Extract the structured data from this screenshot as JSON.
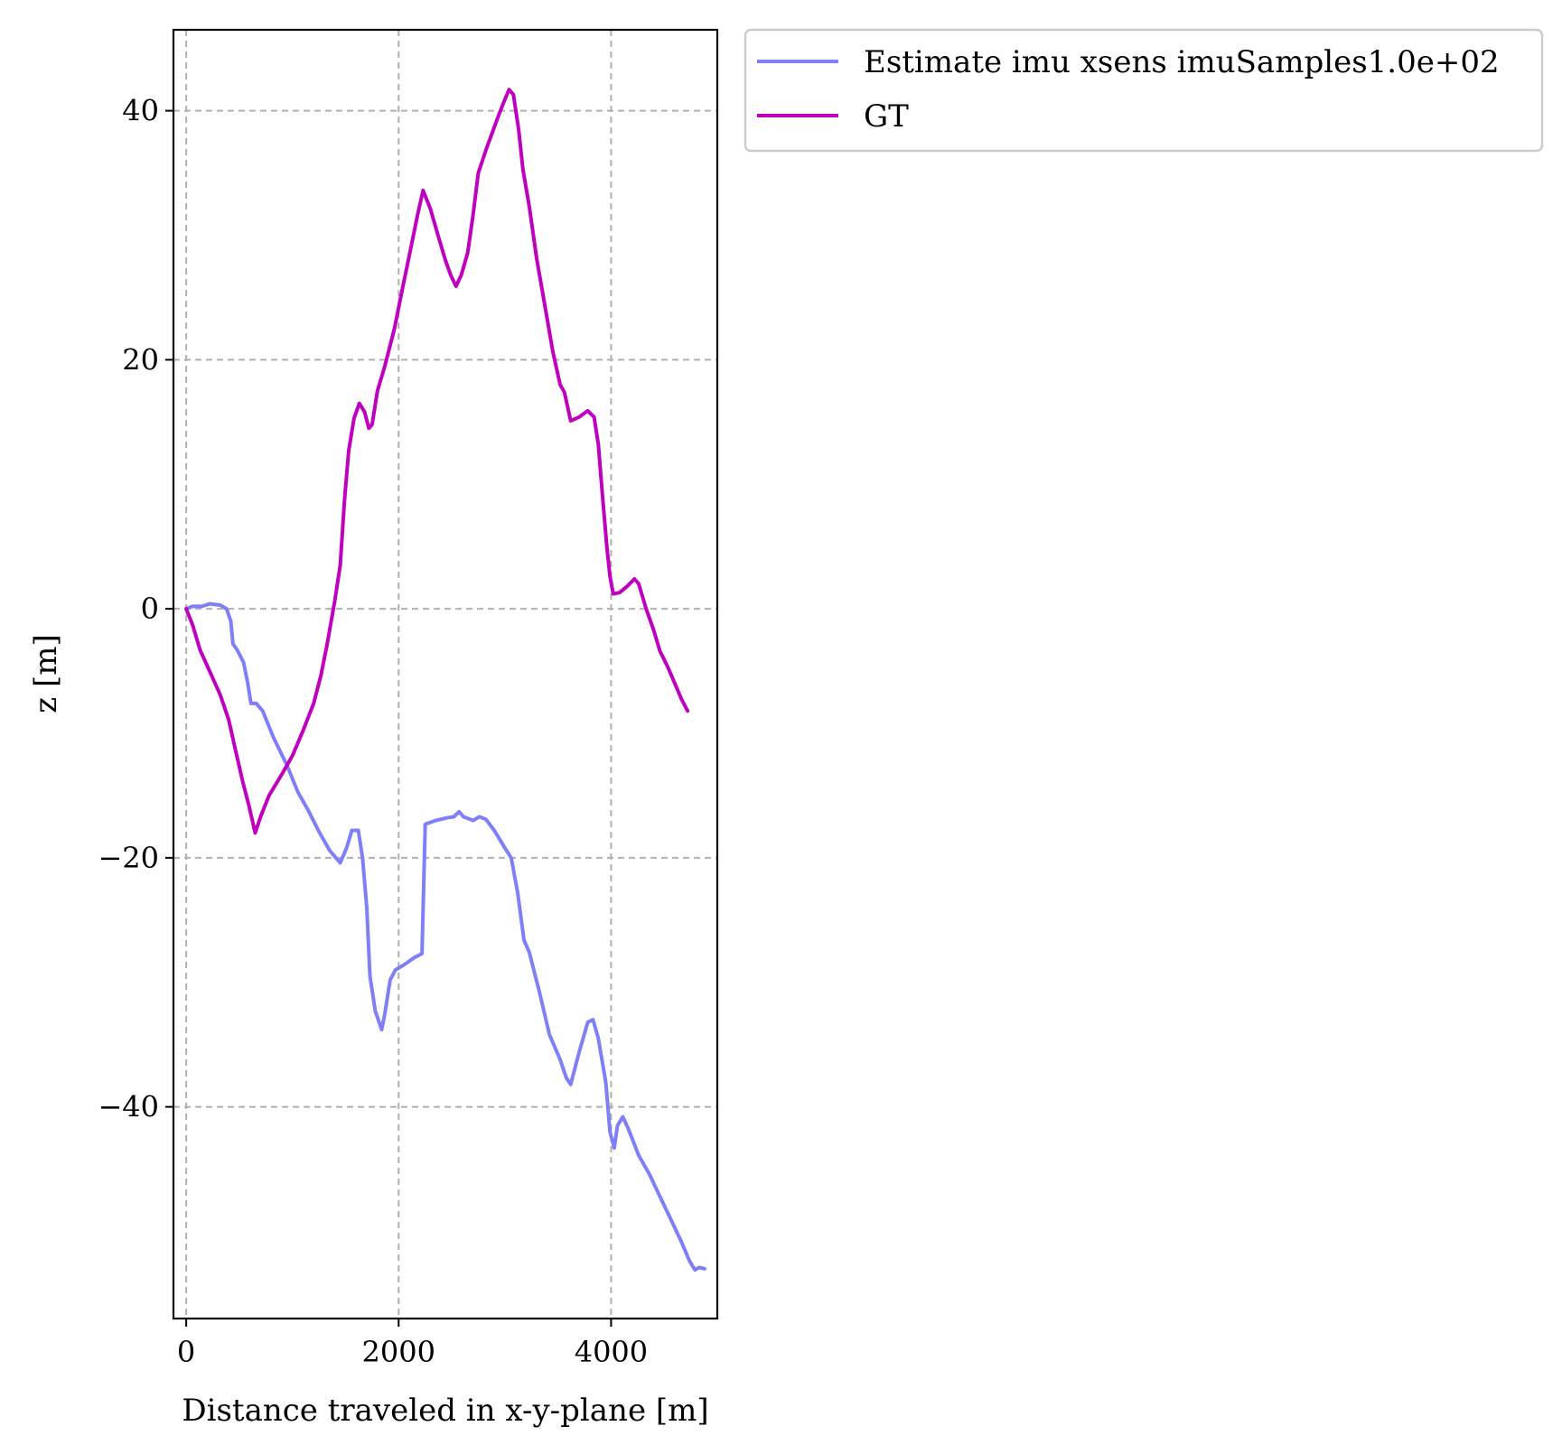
{
  "chart_data": {
    "type": "line",
    "title": "",
    "xlabel": "Distance traveled in x-y-plane [m]",
    "ylabel": "z [m]",
    "xlim": [
      -120,
      5000
    ],
    "ylim": [
      -57,
      46.5
    ],
    "xticks": [
      0,
      2000,
      4000
    ],
    "yticks": [
      -40,
      -20,
      0,
      20,
      40
    ],
    "xtick_labels": [
      "0",
      "2000",
      "4000"
    ],
    "ytick_labels": [
      "−40",
      "−20",
      "0",
      "20",
      "40"
    ],
    "grid": true,
    "legend_position": "outside top-right",
    "series": [
      {
        "name": "Estimate imu xsens imuSamples1.0e+02",
        "color": "#7f7ff7",
        "points": [
          [
            0,
            0
          ],
          [
            60,
            0.2
          ],
          [
            150,
            0.2
          ],
          [
            220,
            0.4
          ],
          [
            320,
            0.3
          ],
          [
            380,
            0.0
          ],
          [
            420,
            -1.0
          ],
          [
            440,
            -2.8
          ],
          [
            480,
            -3.3
          ],
          [
            540,
            -4.3
          ],
          [
            580,
            -6.0
          ],
          [
            610,
            -7.6
          ],
          [
            660,
            -7.6
          ],
          [
            720,
            -8.2
          ],
          [
            820,
            -10.3
          ],
          [
            950,
            -12.6
          ],
          [
            1050,
            -14.7
          ],
          [
            1150,
            -16.2
          ],
          [
            1250,
            -17.9
          ],
          [
            1350,
            -19.4
          ],
          [
            1450,
            -20.4
          ],
          [
            1510,
            -19.2
          ],
          [
            1560,
            -17.8
          ],
          [
            1620,
            -17.8
          ],
          [
            1660,
            -20.0
          ],
          [
            1700,
            -24.0
          ],
          [
            1730,
            -29.5
          ],
          [
            1780,
            -32.3
          ],
          [
            1840,
            -33.8
          ],
          [
            1870,
            -32.5
          ],
          [
            1920,
            -29.8
          ],
          [
            1970,
            -29.0
          ],
          [
            2050,
            -28.6
          ],
          [
            2150,
            -28.0
          ],
          [
            2220,
            -27.7
          ],
          [
            2250,
            -17.3
          ],
          [
            2350,
            -17.0
          ],
          [
            2450,
            -16.8
          ],
          [
            2520,
            -16.7
          ],
          [
            2570,
            -16.3
          ],
          [
            2610,
            -16.7
          ],
          [
            2700,
            -17.0
          ],
          [
            2760,
            -16.7
          ],
          [
            2820,
            -16.9
          ],
          [
            2900,
            -17.8
          ],
          [
            3000,
            -19.2
          ],
          [
            3060,
            -20.0
          ],
          [
            3120,
            -22.8
          ],
          [
            3180,
            -26.6
          ],
          [
            3230,
            -27.6
          ],
          [
            3320,
            -30.6
          ],
          [
            3420,
            -34.2
          ],
          [
            3520,
            -36.2
          ],
          [
            3580,
            -37.7
          ],
          [
            3620,
            -38.2
          ],
          [
            3700,
            -35.6
          ],
          [
            3780,
            -33.2
          ],
          [
            3830,
            -33.0
          ],
          [
            3880,
            -34.5
          ],
          [
            3950,
            -38.0
          ],
          [
            3990,
            -42.0
          ],
          [
            4030,
            -43.3
          ],
          [
            4060,
            -41.5
          ],
          [
            4110,
            -40.8
          ],
          [
            4160,
            -41.7
          ],
          [
            4260,
            -43.9
          ],
          [
            4360,
            -45.4
          ],
          [
            4460,
            -47.2
          ],
          [
            4560,
            -49.0
          ],
          [
            4660,
            -50.8
          ],
          [
            4740,
            -52.4
          ],
          [
            4790,
            -53.1
          ],
          [
            4830,
            -52.9
          ],
          [
            4880,
            -53.0
          ]
        ]
      },
      {
        "name": "GT",
        "color": "#bf00bf",
        "points": [
          [
            0,
            0
          ],
          [
            60,
            -1.3
          ],
          [
            130,
            -3.3
          ],
          [
            220,
            -5.0
          ],
          [
            320,
            -6.9
          ],
          [
            400,
            -8.9
          ],
          [
            460,
            -11.2
          ],
          [
            530,
            -13.8
          ],
          [
            590,
            -15.8
          ],
          [
            650,
            -18.0
          ],
          [
            700,
            -16.7
          ],
          [
            780,
            -15.0
          ],
          [
            900,
            -13.3
          ],
          [
            1000,
            -11.8
          ],
          [
            1100,
            -9.8
          ],
          [
            1200,
            -7.6
          ],
          [
            1270,
            -5.3
          ],
          [
            1330,
            -2.7
          ],
          [
            1400,
            0.7
          ],
          [
            1450,
            3.5
          ],
          [
            1490,
            8.7
          ],
          [
            1530,
            12.7
          ],
          [
            1580,
            15.3
          ],
          [
            1630,
            16.5
          ],
          [
            1680,
            15.8
          ],
          [
            1720,
            14.5
          ],
          [
            1750,
            14.8
          ],
          [
            1800,
            17.5
          ],
          [
            1870,
            19.5
          ],
          [
            1960,
            22.5
          ],
          [
            2040,
            25.9
          ],
          [
            2120,
            29.2
          ],
          [
            2180,
            31.7
          ],
          [
            2230,
            33.6
          ],
          [
            2300,
            32.1
          ],
          [
            2370,
            30.0
          ],
          [
            2440,
            28.0
          ],
          [
            2490,
            26.8
          ],
          [
            2540,
            25.9
          ],
          [
            2590,
            26.8
          ],
          [
            2650,
            28.6
          ],
          [
            2700,
            31.6
          ],
          [
            2750,
            35.0
          ],
          [
            2820,
            36.8
          ],
          [
            2880,
            38.2
          ],
          [
            2940,
            39.6
          ],
          [
            2990,
            40.7
          ],
          [
            3040,
            41.7
          ],
          [
            3080,
            41.3
          ],
          [
            3130,
            38.5
          ],
          [
            3170,
            35.3
          ],
          [
            3230,
            32.3
          ],
          [
            3300,
            28.1
          ],
          [
            3380,
            24.2
          ],
          [
            3450,
            20.7
          ],
          [
            3520,
            18.0
          ],
          [
            3560,
            17.4
          ],
          [
            3620,
            15.1
          ],
          [
            3700,
            15.4
          ],
          [
            3780,
            15.9
          ],
          [
            3840,
            15.4
          ],
          [
            3880,
            13.2
          ],
          [
            3920,
            9.0
          ],
          [
            3960,
            5.0
          ],
          [
            3990,
            2.6
          ],
          [
            4020,
            1.2
          ],
          [
            4080,
            1.3
          ],
          [
            4150,
            1.8
          ],
          [
            4220,
            2.4
          ],
          [
            4260,
            2.0
          ],
          [
            4330,
            0.0
          ],
          [
            4400,
            -1.7
          ],
          [
            4460,
            -3.4
          ],
          [
            4530,
            -4.6
          ],
          [
            4600,
            -6.0
          ],
          [
            4660,
            -7.2
          ],
          [
            4720,
            -8.2
          ]
        ]
      }
    ]
  }
}
